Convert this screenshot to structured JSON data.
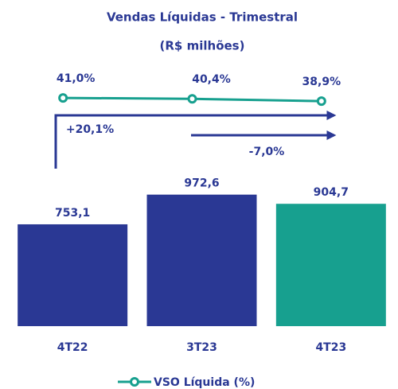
{
  "chart_data": {
    "type": "bar",
    "title": "Vendas Líquidas - Trimestral",
    "subtitle": "(R$ milhões)",
    "categories": [
      "4T22",
      "3T23",
      "4T23"
    ],
    "values": [
      753.1,
      972.6,
      904.7
    ],
    "value_labels": [
      "753,1",
      "972,6",
      "904,7"
    ],
    "colors": [
      "#2a3894",
      "#2a3894",
      "#17a08f"
    ],
    "ylim": [
      0,
      1000
    ],
    "y2lim": [
      30,
      50
    ],
    "series": [
      {
        "name": "VSO Líquida (%)",
        "color": "#17a08f",
        "axis": "y2",
        "type": "line",
        "values": [
          41.0,
          40.4,
          38.9
        ],
        "value_labels": [
          "41,0%",
          "40,4%",
          "38,9%"
        ]
      }
    ],
    "annotations": [
      "+20,1%",
      "-7,0%"
    ]
  }
}
